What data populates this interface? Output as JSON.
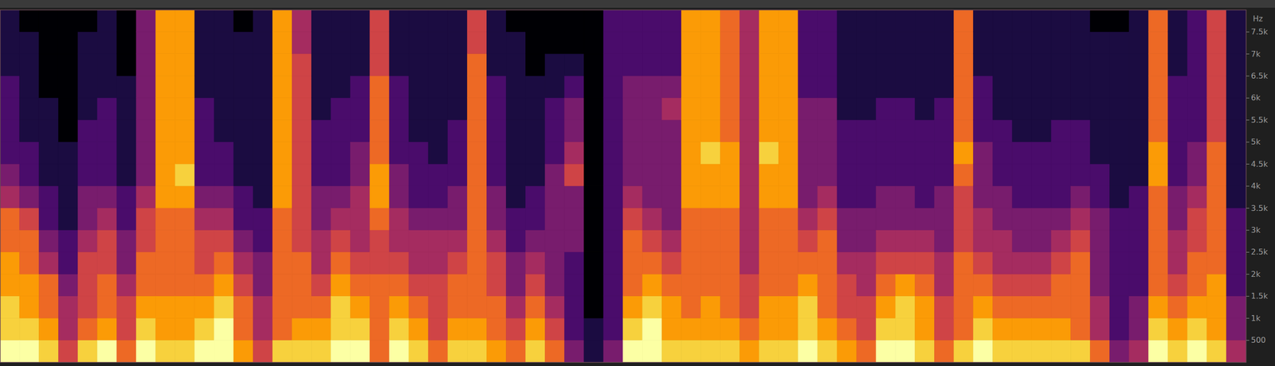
{
  "chart_data": {
    "type": "heatmap",
    "color": "inferno",
    "tick_labels": "y",
    "y_label": "Hz",
    "ylim": [
      0,
      8000
    ],
    "yticks": [
      500,
      {
        "value": 1000,
        "label": "1k"
      },
      {
        "value": 1500,
        "label": "1.5k"
      },
      {
        "value": 2000,
        "label": "2k"
      },
      {
        "value": 2500,
        "label": "2.5k"
      },
      {
        "value": 3000,
        "label": "3k"
      },
      {
        "value": 3500,
        "label": "3.5k"
      },
      {
        "value": 4000,
        "label": "4k"
      },
      {
        "value": 4500,
        "label": "4.5k"
      },
      {
        "value": 5000,
        "label": "5k"
      },
      {
        "value": 5500,
        "label": "5.5k"
      },
      {
        "value": 6000,
        "label": "6k"
      },
      {
        "value": 6500,
        "label": "6.5k"
      },
      {
        "value": 7000,
        "label": "7k"
      },
      {
        "value": 7500,
        "label": "7.5k"
      }
    ],
    "y_bins": [
      0,
      500,
      1000,
      1500,
      2000,
      2500,
      3000,
      3500,
      4000,
      4500,
      5000,
      5500,
      6000,
      6500,
      7000,
      7500,
      8000
    ],
    "zlim": [
      0,
      9
    ],
    "values": [
      [
        9,
        8,
        8,
        7,
        7,
        6,
        6,
        4,
        3,
        2,
        2,
        2,
        2,
        1,
        1,
        1
      ],
      [
        9,
        8,
        7,
        7,
        6,
        6,
        5,
        3,
        2,
        2,
        1,
        1,
        1,
        1,
        1,
        0
      ],
      [
        8,
        7,
        6,
        6,
        4,
        3,
        2,
        2,
        1,
        1,
        1,
        1,
        0,
        0,
        0,
        0
      ],
      [
        5,
        4,
        4,
        3,
        2,
        2,
        1,
        1,
        1,
        1,
        0,
        0,
        0,
        0,
        0,
        0
      ],
      [
        8,
        6,
        5,
        5,
        5,
        4,
        3,
        3,
        2,
        2,
        2,
        1,
        1,
        1,
        1,
        0
      ],
      [
        9,
        7,
        6,
        6,
        5,
        5,
        4,
        3,
        2,
        2,
        2,
        2,
        1,
        1,
        1,
        1
      ],
      [
        6,
        5,
        5,
        4,
        3,
        3,
        2,
        2,
        1,
        1,
        1,
        1,
        1,
        0,
        0,
        0
      ],
      [
        9,
        8,
        7,
        6,
        6,
        5,
        5,
        4,
        3,
        3,
        3,
        3,
        3,
        3,
        3,
        3
      ],
      [
        8,
        7,
        7,
        6,
        6,
        6,
        6,
        7,
        7,
        7,
        7,
        7,
        7,
        7,
        7,
        7
      ],
      [
        8,
        7,
        7,
        6,
        6,
        6,
        6,
        7,
        8,
        7,
        7,
        7,
        7,
        7,
        7,
        7
      ],
      [
        9,
        8,
        7,
        6,
        5,
        5,
        4,
        3,
        2,
        2,
        2,
        2,
        1,
        1,
        1,
        1
      ],
      [
        9,
        9,
        8,
        7,
        6,
        5,
        4,
        3,
        2,
        2,
        1,
        1,
        1,
        1,
        1,
        1
      ],
      [
        7,
        6,
        6,
        5,
        4,
        3,
        2,
        2,
        1,
        1,
        1,
        1,
        1,
        1,
        1,
        0
      ],
      [
        5,
        4,
        4,
        3,
        3,
        2,
        2,
        1,
        1,
        1,
        1,
        1,
        1,
        1,
        1,
        1
      ],
      [
        8,
        6,
        6,
        6,
        6,
        6,
        6,
        7,
        7,
        7,
        7,
        7,
        7,
        7,
        7,
        7
      ],
      [
        8,
        7,
        6,
        6,
        6,
        5,
        5,
        5,
        5,
        5,
        5,
        5,
        5,
        5,
        4,
        4
      ],
      [
        8,
        7,
        6,
        5,
        4,
        4,
        3,
        3,
        2,
        2,
        2,
        1,
        1,
        1,
        1,
        1
      ],
      [
        9,
        8,
        8,
        7,
        6,
        5,
        4,
        3,
        2,
        2,
        2,
        2,
        1,
        1,
        1,
        1
      ],
      [
        9,
        8,
        7,
        6,
        5,
        4,
        4,
        4,
        3,
        3,
        2,
        2,
        2,
        1,
        1,
        1
      ],
      [
        6,
        6,
        6,
        6,
        5,
        5,
        6,
        7,
        7,
        6,
        6,
        6,
        6,
        5,
        5,
        5
      ],
      [
        9,
        8,
        7,
        6,
        5,
        4,
        4,
        3,
        3,
        2,
        2,
        2,
        2,
        1,
        1,
        1
      ],
      [
        8,
        7,
        6,
        5,
        4,
        4,
        3,
        2,
        2,
        2,
        1,
        1,
        1,
        1,
        1,
        1
      ],
      [
        6,
        5,
        5,
        5,
        4,
        4,
        3,
        2,
        2,
        1,
        1,
        1,
        1,
        1,
        1,
        1
      ],
      [
        8,
        7,
        6,
        6,
        5,
        4,
        3,
        3,
        2,
        2,
        2,
        1,
        1,
        1,
        1,
        1
      ],
      [
        8,
        7,
        6,
        6,
        6,
        6,
        6,
        6,
        6,
        6,
        6,
        6,
        6,
        6,
        5,
        5
      ],
      [
        7,
        6,
        6,
        5,
        5,
        4,
        3,
        3,
        2,
        2,
        2,
        2,
        2,
        1,
        1,
        1
      ],
      [
        6,
        5,
        4,
        3,
        3,
        2,
        2,
        1,
        1,
        1,
        1,
        1,
        1,
        1,
        1,
        0
      ],
      [
        8,
        7,
        6,
        5,
        4,
        3,
        2,
        2,
        1,
        1,
        1,
        1,
        1,
        0,
        0,
        0
      ],
      [
        6,
        5,
        4,
        3,
        3,
        3,
        3,
        3,
        3,
        2,
        2,
        2,
        1,
        1,
        0,
        0
      ],
      [
        3,
        2,
        2,
        2,
        2,
        3,
        3,
        3,
        5,
        4,
        3,
        3,
        2,
        1,
        0,
        0
      ],
      [
        1,
        1,
        0,
        0,
        0,
        0,
        0,
        0,
        0,
        0,
        0,
        0,
        0,
        0,
        0,
        0
      ],
      [
        3,
        2,
        2,
        2,
        2,
        2,
        2,
        2,
        2,
        2,
        2,
        2,
        2,
        2,
        2,
        2
      ],
      [
        9,
        8,
        7,
        6,
        6,
        6,
        5,
        4,
        3,
        3,
        3,
        3,
        3,
        2,
        2,
        2
      ],
      [
        9,
        9,
        8,
        7,
        6,
        5,
        4,
        3,
        3,
        3,
        3,
        3,
        3,
        2,
        2,
        2
      ],
      [
        8,
        7,
        7,
        6,
        5,
        4,
        3,
        3,
        3,
        3,
        3,
        4,
        3,
        2,
        2,
        2
      ],
      [
        8,
        7,
        6,
        6,
        6,
        6,
        6,
        7,
        7,
        7,
        7,
        7,
        7,
        7,
        7,
        7
      ],
      [
        8,
        7,
        7,
        6,
        6,
        6,
        6,
        7,
        7,
        8,
        7,
        7,
        7,
        7,
        7,
        7
      ],
      [
        8,
        7,
        6,
        6,
        6,
        6,
        6,
        7,
        7,
        7,
        6,
        6,
        6,
        6,
        6,
        6
      ],
      [
        7,
        6,
        5,
        5,
        4,
        4,
        4,
        4,
        4,
        4,
        4,
        4,
        4,
        4,
        4,
        4
      ],
      [
        8,
        7,
        7,
        6,
        6,
        6,
        6,
        7,
        7,
        8,
        7,
        7,
        7,
        7,
        7,
        7
      ],
      [
        8,
        7,
        7,
        6,
        6,
        6,
        6,
        7,
        7,
        7,
        7,
        7,
        7,
        7,
        7,
        7
      ],
      [
        9,
        8,
        8,
        7,
        6,
        5,
        4,
        3,
        3,
        3,
        3,
        3,
        2,
        2,
        2,
        2
      ],
      [
        8,
        7,
        6,
        6,
        6,
        6,
        5,
        4,
        3,
        3,
        3,
        3,
        2,
        2,
        2,
        2
      ],
      [
        7,
        6,
        5,
        5,
        4,
        3,
        3,
        2,
        2,
        2,
        2,
        1,
        1,
        1,
        1,
        1
      ],
      [
        6,
        5,
        5,
        4,
        4,
        3,
        3,
        2,
        2,
        2,
        2,
        1,
        1,
        1,
        1,
        1
      ],
      [
        9,
        8,
        7,
        6,
        5,
        4,
        3,
        3,
        2,
        2,
        2,
        2,
        1,
        1,
        1,
        1
      ],
      [
        9,
        8,
        8,
        7,
        5,
        4,
        3,
        3,
        2,
        2,
        2,
        2,
        1,
        1,
        1,
        1
      ],
      [
        8,
        7,
        7,
        6,
        5,
        4,
        3,
        2,
        2,
        2,
        2,
        1,
        1,
        1,
        1,
        1
      ],
      [
        6,
        5,
        5,
        4,
        4,
        3,
        3,
        3,
        2,
        2,
        2,
        2,
        1,
        1,
        1,
        1
      ],
      [
        8,
        6,
        6,
        6,
        6,
        5,
        5,
        5,
        6,
        7,
        6,
        6,
        6,
        6,
        6,
        6
      ],
      [
        9,
        8,
        7,
        6,
        5,
        4,
        4,
        3,
        3,
        3,
        2,
        2,
        2,
        1,
        1,
        1
      ],
      [
        8,
        7,
        6,
        5,
        4,
        4,
        3,
        3,
        2,
        2,
        2,
        1,
        1,
        1,
        1,
        1
      ],
      [
        8,
        7,
        6,
        5,
        4,
        3,
        3,
        2,
        2,
        2,
        1,
        1,
        1,
        1,
        1,
        1
      ],
      [
        8,
        7,
        6,
        5,
        4,
        3,
        3,
        2,
        2,
        2,
        1,
        1,
        1,
        1,
        1,
        1
      ],
      [
        8,
        7,
        6,
        6,
        5,
        4,
        3,
        2,
        2,
        2,
        2,
        1,
        1,
        1,
        1,
        1
      ],
      [
        8,
        6,
        6,
        6,
        6,
        5,
        4,
        3,
        2,
        2,
        2,
        1,
        1,
        1,
        1,
        1
      ],
      [
        6,
        4,
        4,
        3,
        3,
        3,
        3,
        2,
        2,
        1,
        1,
        1,
        1,
        1,
        1,
        0
      ],
      [
        3,
        2,
        2,
        2,
        2,
        2,
        2,
        1,
        1,
        1,
        1,
        1,
        1,
        1,
        1,
        0
      ],
      [
        4,
        3,
        3,
        2,
        2,
        2,
        2,
        2,
        1,
        1,
        1,
        1,
        1,
        1,
        1,
        1
      ],
      [
        9,
        8,
        7,
        6,
        6,
        6,
        6,
        6,
        7,
        7,
        6,
        6,
        6,
        6,
        6,
        6
      ],
      [
        8,
        7,
        6,
        5,
        4,
        4,
        3,
        3,
        2,
        2,
        2,
        2,
        2,
        1,
        1,
        1
      ],
      [
        9,
        8,
        7,
        6,
        6,
        5,
        5,
        4,
        3,
        3,
        2,
        2,
        2,
        2,
        2,
        2
      ],
      [
        8,
        7,
        7,
        7,
        6,
        6,
        6,
        6,
        6,
        6,
        5,
        5,
        5,
        5,
        5,
        5
      ],
      [
        4,
        3,
        3,
        2,
        2,
        2,
        2,
        1,
        1,
        1,
        1,
        1,
        1,
        1,
        1,
        1
      ]
    ]
  }
}
